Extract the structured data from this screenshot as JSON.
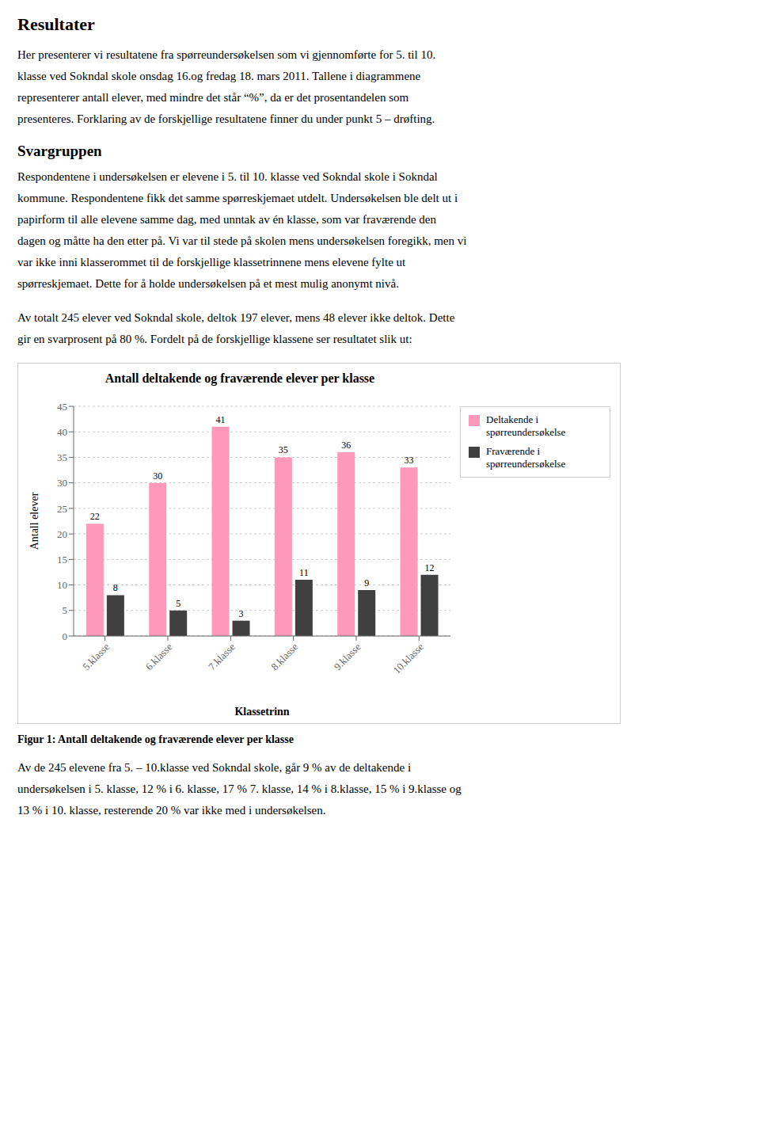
{
  "title": "Resultater",
  "text_above": [
    [
      "Her presenterer vi resultatene fra spørreundersøkelsen som vi gjennomførte for 5. til 10.",
      "klasse ved Sokndal skole onsdag 16.og fredag 18. mars 2011. Tallene i diagrammene",
      "representerer antall elever, med mindre det står “%”, da er det prosentandelen som",
      "presenteres. Forklaring av de forskjellige resultatene finner du under punkt 5 – drøfting."
    ],
    "Svargruppen",
    [
      "Respondentene i undersøkelsen er elevene i 5. til 10. klasse ved Sokndal skole i Sokndal",
      "kommune. Respondentene fikk det samme spørreskjemaet utdelt. Undersøkelsen ble delt ut i",
      "papirform til alle elevene samme dag, med unntak av én klasse, som var fraværende den",
      "dagen og måtte ha den etter på. Vi var til stede på skolen mens undersøkelsen foregikk, men vi",
      "var ikke inni klasserommet til de forskjellige klassetrinnene mens elevene fylte ut",
      "spørreskjemaet. Dette for å holde undersøkelsen på et mest mulig anonymt nivå."
    ],
    [
      "Av totalt 245 elever ved Sokndal skole, deltok 197 elever, mens 48 elever ikke deltok. Dette",
      "gir en svarprosent på 80 %. Fordelt på de forskjellige klassene ser resultatet slik ut:"
    ]
  ],
  "text_below": [
    [
      "Av de 245 elevene fra 5. – 10.klasse ved Sokndal skole, går 9 % av de deltakende i",
      "undersøkelsen i 5. klasse, 12 % i 6. klasse, 17 % 7. klasse, 14 % i 8.klasse, 15 % i 9.klasse og",
      "13 % i 10. klasse, resterende 20 % var ikke med i undersøkelsen."
    ]
  ],
  "chart_data": {
    "type": "bar",
    "title": "Antall deltakende og fraværende elever per klasse",
    "caption": "Figur 1: Antall deltakende og fraværende elever per klasse",
    "categories": [
      "5.klasse",
      "6.klasse",
      "7.klasse",
      "8.klasse",
      "9.klasse",
      "10.klasse"
    ],
    "series": [
      {
        "name": "Deltakende i\nspørreundersøkelse",
        "color": "#FF99BB",
        "values": [
          22,
          30,
          41,
          35,
          36,
          33
        ]
      },
      {
        "name": "Fraværende i\nspørreundersøkelse",
        "color": "#404040",
        "values": [
          8,
          5,
          3,
          11,
          9,
          12
        ]
      }
    ],
    "xlabel": "Klassetrinn",
    "ylabel": "Antall elever",
    "ylim": [
      0,
      45
    ],
    "yticks": [
      0,
      5,
      10,
      15,
      20,
      25,
      30,
      35,
      40,
      45
    ],
    "grid": true,
    "data_labels": true,
    "legend": "right"
  }
}
